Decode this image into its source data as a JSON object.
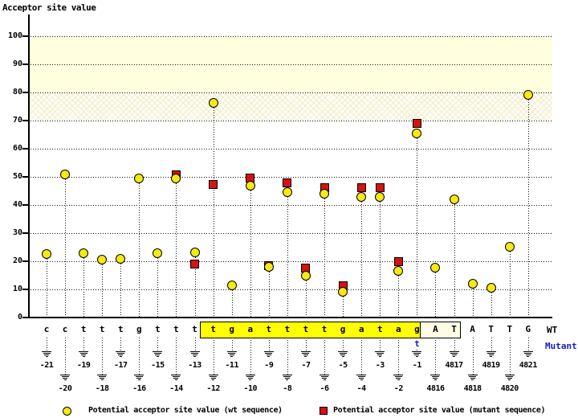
{
  "title": "Acceptor site value",
  "labels": {
    "wt": "WT",
    "mutant": "Mutant",
    "mutant_base": "t"
  },
  "legend": {
    "wt": "Potential acceptor site value (wt sequence)",
    "mutant": "Potential acceptor site value (mutant sequence)"
  },
  "colors": {
    "wt_marker": "#f6e914",
    "mutant_marker": "#d51111",
    "band_solid": "#ffffe0",
    "sequence_highlight": "#ffff00",
    "exon_box": "#fffce6",
    "mutant_blue": "#1a1acd"
  },
  "chart_data": {
    "type": "scatter",
    "title": "Acceptor site value",
    "ylabel": "Acceptor site value",
    "ylim": [
      0,
      107
    ],
    "yticks": [
      0,
      10,
      20,
      30,
      40,
      50,
      60,
      70,
      80,
      90,
      100
    ],
    "grid": "dotted-horizontal",
    "legend_position": "bottom",
    "series_names": [
      "wt",
      "mutant"
    ],
    "highlight_bands": [
      {
        "range": [
          80,
          100
        ],
        "style": "solid"
      },
      {
        "range": [
          70,
          80
        ],
        "style": "hatch"
      }
    ],
    "highlight_region": {
      "start_pos": "-12",
      "end_pos": "-1"
    },
    "exon_box_region": {
      "start_pos": "4816",
      "end_pos": "4817"
    },
    "mutation": {
      "pos": "-1",
      "wt_base": "g",
      "mutant_base": "t"
    },
    "points": [
      {
        "base": "c",
        "pos": "-21",
        "wt": 22.5
      },
      {
        "base": "c",
        "pos": "-20",
        "wt": 51.0
      },
      {
        "base": "t",
        "pos": "-19",
        "wt": 23.0
      },
      {
        "base": "t",
        "pos": "-18",
        "wt": 20.5
      },
      {
        "base": "t",
        "pos": "-17",
        "wt": 21.0
      },
      {
        "base": "g",
        "pos": "-16",
        "wt": 49.4
      },
      {
        "base": "t",
        "pos": "-15",
        "wt": 22.8
      },
      {
        "base": "t",
        "pos": "-14",
        "wt": 49.5,
        "mutant": 50.8
      },
      {
        "base": "t",
        "pos": "-13",
        "wt": 23.1,
        "mutant": 19.0
      },
      {
        "base": "t",
        "pos": "-12",
        "wt": 76.4,
        "mutant": 47.3
      },
      {
        "base": "g",
        "pos": "-11",
        "wt": 11.5
      },
      {
        "base": "a",
        "pos": "-10",
        "wt": 47.0,
        "mutant": 49.7
      },
      {
        "base": "t",
        "pos": "-9",
        "wt": 18.0,
        "mutant": 18.3
      },
      {
        "base": "t",
        "pos": "-8",
        "wt": 44.6,
        "mutant": 48.0
      },
      {
        "base": "t",
        "pos": "-7",
        "wt": 15.0,
        "mutant": 17.6
      },
      {
        "base": "t",
        "pos": "-6",
        "wt": 44.0,
        "mutant": 46.2
      },
      {
        "base": "g",
        "pos": "-5",
        "wt": 9.1,
        "mutant": 11.2
      },
      {
        "base": "a",
        "pos": "-4",
        "wt": 43.0,
        "mutant": 46.2
      },
      {
        "base": "t",
        "pos": "-3",
        "wt": 43.0,
        "mutant": 46.2
      },
      {
        "base": "a",
        "pos": "-2",
        "wt": 16.5,
        "mutant": 20.0
      },
      {
        "base": "g",
        "pos": "-1",
        "wt": 65.5,
        "mutant": 69.0
      },
      {
        "base": "A",
        "pos": "4816",
        "wt": 17.7
      },
      {
        "base": "T",
        "pos": "4817",
        "wt": 42.0
      },
      {
        "base": "A",
        "pos": "4818",
        "wt": 12.0
      },
      {
        "base": "T",
        "pos": "4819",
        "wt": 10.7
      },
      {
        "base": "T",
        "pos": "4820",
        "wt": 25.2
      },
      {
        "base": "G",
        "pos": "4821",
        "wt": 79.2
      }
    ]
  }
}
